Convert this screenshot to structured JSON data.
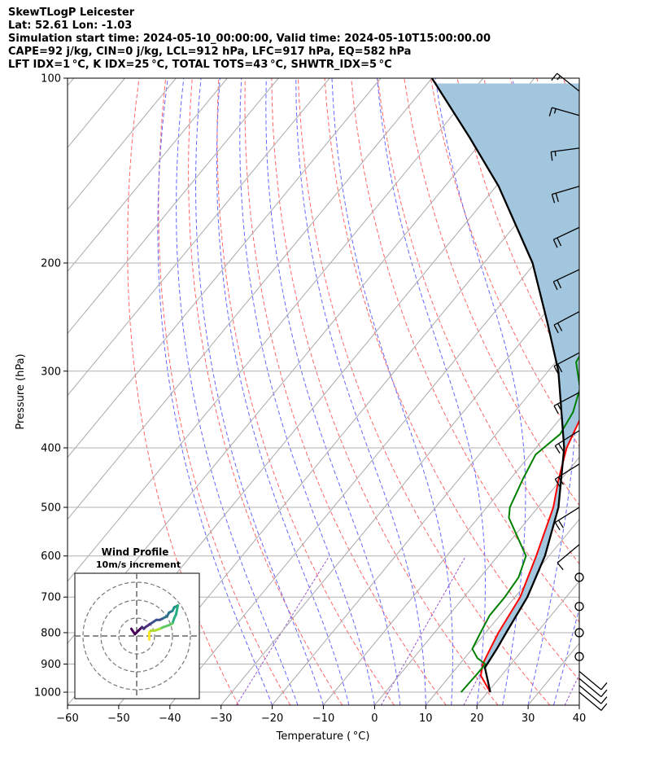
{
  "header": {
    "line1": "SkewTLogP Leicester",
    "line2": "Lat: 52.61   Lon: -1.03",
    "line3": "Simulation start time: 2024-05-10_00:00:00, Valid time: 2024-05-10T15:00:00.00",
    "line4": "CAPE=92 j/kg, CIN=0 j/kg, LCL=912 hPa, LFC=917 hPa, EQ=582 hPa",
    "line5": "LFT IDX=1 °C, K IDX=25 °C, TOTAL TOTS=43 °C, SHWTR_IDX=5 °C"
  },
  "chart_data": {
    "type": "line",
    "xlabel": "Temperature ( °C)",
    "ylabel": "Pressure (hPa)",
    "xlim": [
      -60,
      40
    ],
    "ylim": [
      1050,
      100
    ],
    "y_scale": "log",
    "skew": true,
    "x_ticks": [
      -60,
      -50,
      -40,
      -30,
      -20,
      -10,
      0,
      10,
      20,
      30,
      40
    ],
    "x_tick_labels": [
      "−60",
      "−50",
      "−40",
      "−30",
      "−20",
      "−10",
      "0",
      "10",
      "20",
      "30",
      "40"
    ],
    "y_ticks": [
      1000,
      900,
      800,
      700,
      600,
      500,
      400,
      300,
      200,
      100
    ],
    "y_tick_labels": [
      "1000",
      "900",
      "800",
      "700",
      "600",
      "500",
      "400",
      "300",
      "200",
      "100"
    ],
    "grid": true,
    "colors": {
      "temperature": "#ff0000",
      "dewpoint": "#008000",
      "parcel": "#000000",
      "cape": "#a2c6de",
      "dry_adiabat": "#ff6666",
      "moist_adiabat": "#6666ff",
      "mixing_ratio": "#9955cc",
      "isotherm": "#aaaaaa"
    },
    "series": [
      {
        "role": "temperature",
        "points": [
          [
            1000,
            20.5
          ],
          [
            940,
            16
          ],
          [
            900,
            14.5
          ],
          [
            850,
            13.5
          ],
          [
            800,
            12.5
          ],
          [
            700,
            11
          ],
          [
            600,
            7.5
          ],
          [
            500,
            3
          ],
          [
            450,
            -0.5
          ],
          [
            400,
            -4
          ],
          [
            350,
            -6.5
          ],
          [
            300,
            -11
          ],
          [
            250,
            -18
          ],
          [
            220,
            -23
          ],
          [
            205,
            -28
          ],
          [
            190,
            -31
          ],
          [
            175,
            -30
          ],
          [
            160,
            -28
          ],
          [
            150,
            -27
          ],
          [
            130,
            -25
          ],
          [
            115,
            -24
          ],
          [
            100,
            -23
          ]
        ]
      },
      {
        "role": "dewpoint",
        "points": [
          [
            1000,
            14.8
          ],
          [
            930,
            15
          ],
          [
            900,
            15
          ],
          [
            880,
            12.5
          ],
          [
            850,
            10
          ],
          [
            800,
            9
          ],
          [
            750,
            8
          ],
          [
            700,
            8
          ],
          [
            650,
            7.5
          ],
          [
            600,
            5.5
          ],
          [
            520,
            -4
          ],
          [
            500,
            -5.5
          ],
          [
            450,
            -7.5
          ],
          [
            410,
            -9
          ],
          [
            380,
            -7.5
          ],
          [
            350,
            -8.5
          ],
          [
            320,
            -11
          ],
          [
            290,
            -16
          ],
          [
            250,
            -18
          ],
          [
            240,
            -21
          ],
          [
            230,
            -24.5
          ],
          [
            200,
            -30
          ],
          [
            185,
            -32
          ],
          [
            165,
            -29
          ],
          [
            155,
            -31
          ],
          [
            140,
            -38
          ],
          [
            120,
            -39
          ],
          [
            100,
            -41
          ]
        ]
      },
      {
        "role": "parcel",
        "points": [
          [
            1000,
            20.5
          ],
          [
            912,
            15.5
          ],
          [
            850,
            14.8
          ],
          [
            800,
            14
          ],
          [
            700,
            12.4
          ],
          [
            600,
            9.2
          ],
          [
            500,
            4
          ],
          [
            400,
            -4.5
          ],
          [
            300,
            -18
          ],
          [
            250,
            -28
          ],
          [
            200,
            -40.5
          ],
          [
            150,
            -59.5
          ],
          [
            125,
            -73
          ],
          [
            100,
            -90
          ]
        ]
      }
    ],
    "wind_barbs": [
      {
        "p": 1000,
        "u": -6,
        "v": 5
      },
      {
        "p": 975,
        "u": -6,
        "v": 5
      },
      {
        "p": 950,
        "u": -6,
        "v": 5
      },
      {
        "p": 925,
        "u": -6,
        "v": 5
      },
      {
        "p": 875,
        "u": 0,
        "v": 0
      },
      {
        "p": 800,
        "u": 0,
        "v": 0
      },
      {
        "p": 725,
        "u": 0,
        "v": 0
      },
      {
        "p": 650,
        "u": 0,
        "v": 0
      },
      {
        "p": 575,
        "u": 6,
        "v": 5
      },
      {
        "p": 500,
        "u": 16,
        "v": 10
      },
      {
        "p": 425,
        "u": 16,
        "v": 10
      },
      {
        "p": 375,
        "u": 16,
        "v": 10
      },
      {
        "p": 325,
        "u": 17,
        "v": 9
      },
      {
        "p": 280,
        "u": 17,
        "v": 9
      },
      {
        "p": 240,
        "u": 17,
        "v": 9
      },
      {
        "p": 205,
        "u": 17,
        "v": 8
      },
      {
        "p": 175,
        "u": 17,
        "v": 8
      },
      {
        "p": 150,
        "u": 17,
        "v": 5
      },
      {
        "p": 130,
        "u": 15,
        "v": 2
      },
      {
        "p": 115,
        "u": 14,
        "v": -4
      },
      {
        "p": 105,
        "u": 10,
        "v": -8
      }
    ],
    "hodograph": {
      "title": "Wind Profile",
      "subtitle": "10m/s increment",
      "rings": [
        10,
        20,
        30
      ],
      "points": [
        [
          -3,
          4
        ],
        [
          -1,
          1
        ],
        [
          1,
          3
        ],
        [
          3,
          5
        ],
        [
          4,
          4
        ],
        [
          5,
          5
        ],
        [
          8,
          7
        ],
        [
          11,
          9
        ],
        [
          13,
          9
        ],
        [
          15,
          10
        ],
        [
          17,
          11
        ],
        [
          18,
          13
        ],
        [
          20,
          14
        ],
        [
          21,
          16
        ],
        [
          23,
          17
        ],
        [
          22,
          12
        ],
        [
          21,
          10
        ],
        [
          20,
          7
        ],
        [
          18,
          6
        ],
        [
          15,
          5
        ],
        [
          13,
          4
        ],
        [
          10,
          3
        ],
        [
          8,
          3
        ],
        [
          7,
          2
        ],
        [
          7,
          0
        ],
        [
          7,
          -2
        ]
      ]
    }
  }
}
